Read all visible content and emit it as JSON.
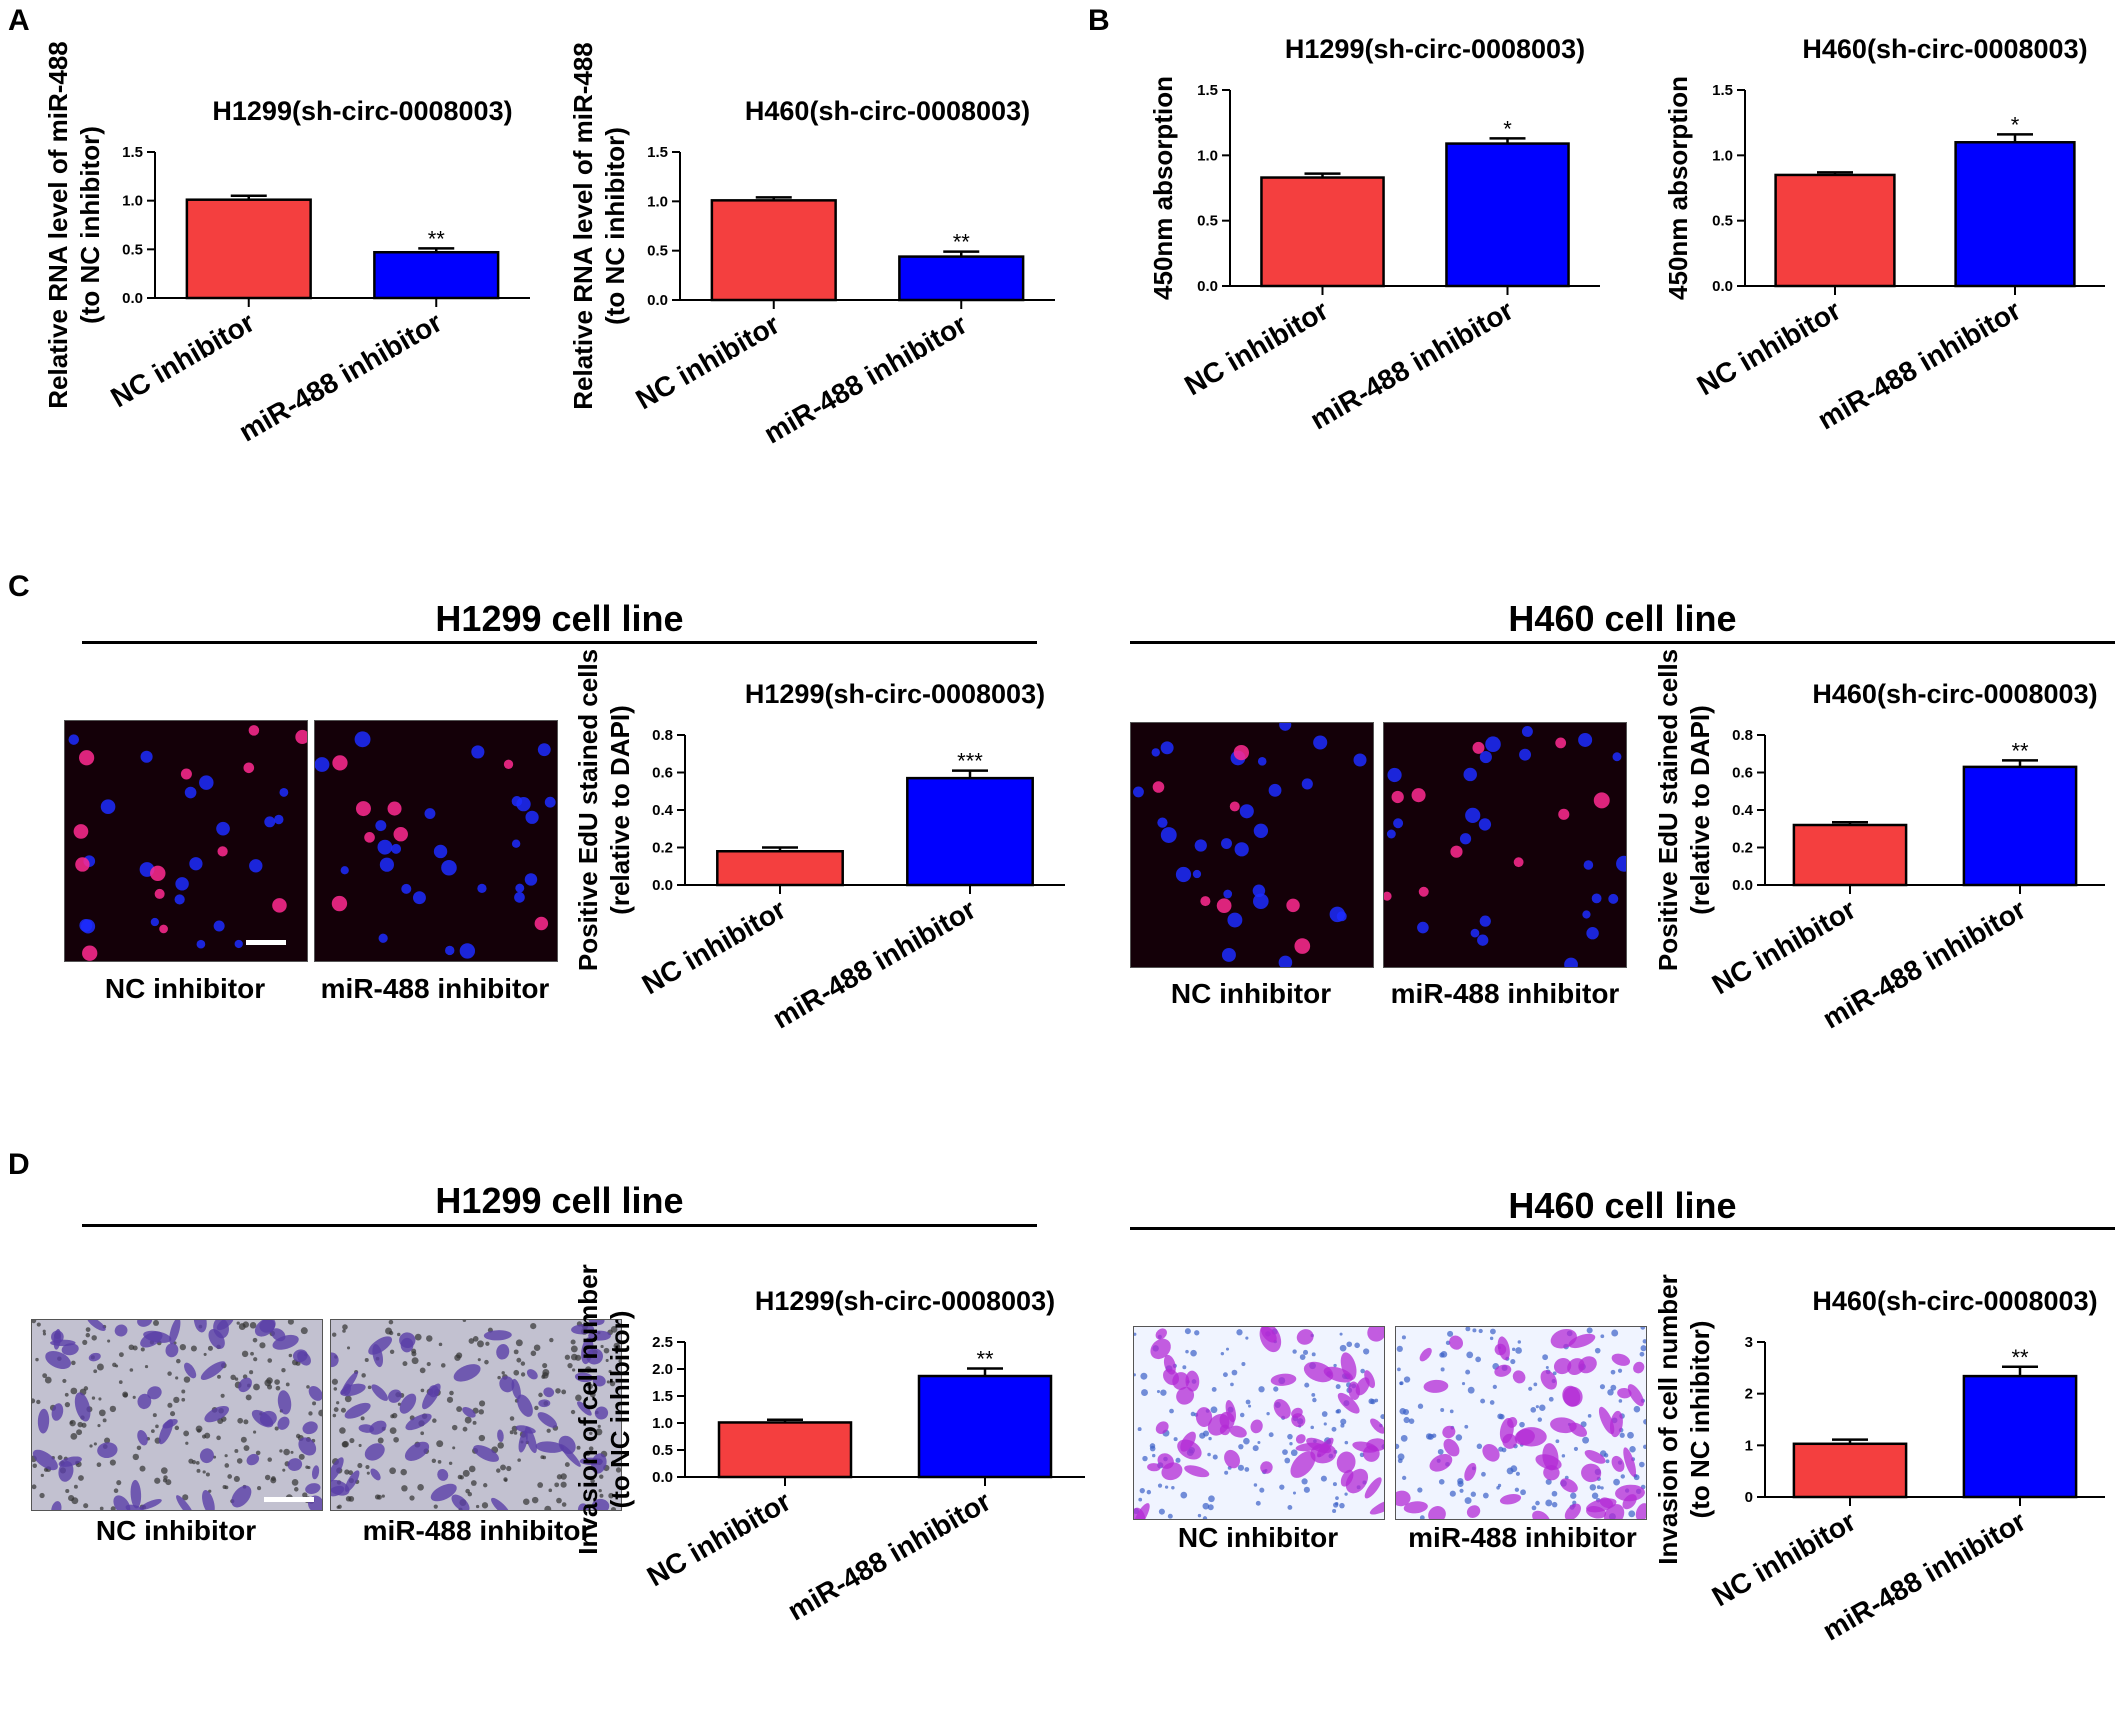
{
  "colors": {
    "nc": "#f43f3f",
    "mir": "#0000ff",
    "edu_bg": "#140008",
    "transwell_bg": "#c2c1d0",
    "transwell_bg2": "#f0f4ff"
  },
  "panels": {
    "A": "A",
    "B": "B",
    "C": "C",
    "D": "D"
  },
  "sections": {
    "c_h1299": {
      "title": "H1299 cell line"
    },
    "c_h460": {
      "title": "H460 cell line"
    },
    "d_h1299": {
      "title": "H1299 cell line"
    },
    "d_h460": {
      "title": "H460 cell line"
    }
  },
  "micrographs": {
    "c_h1299": {
      "left": "NC inhibitor",
      "right": "miR-488 inhibitor"
    },
    "c_h460": {
      "left": "NC inhibitor",
      "right": "miR-488 inhibitor"
    },
    "d_h1299": {
      "left": "NC inhibitor",
      "right": "miR-488 inhibitor"
    },
    "d_h460": {
      "left": "NC inhibitor",
      "right": "miR-488 inhibitor"
    }
  },
  "chart_data": [
    {
      "id": "A1",
      "type": "bar",
      "title": "H1299(sh-circ-0008003)",
      "ylabel": [
        "Relative RNA level of miR-488",
        "(to NC inhibitor)"
      ],
      "categories": [
        "NC inhibitor",
        "miR-488 inhibitor"
      ],
      "values": [
        1.01,
        0.47
      ],
      "errors": [
        0.04,
        0.04
      ],
      "significance": [
        "",
        "**"
      ],
      "ylim": [
        0,
        1.5
      ],
      "yticks": [
        "0.0",
        "0.5",
        "1.0",
        "1.5"
      ]
    },
    {
      "id": "A2",
      "type": "bar",
      "title": "H460(sh-circ-0008003)",
      "ylabel": [
        "Relative RNA level of miR-488",
        "(to NC inhibitor)"
      ],
      "categories": [
        "NC inhibitor",
        "miR-488 inhibitor"
      ],
      "values": [
        1.01,
        0.44
      ],
      "errors": [
        0.03,
        0.05
      ],
      "significance": [
        "",
        "**"
      ],
      "ylim": [
        0,
        1.5
      ],
      "yticks": [
        "0.0",
        "0.5",
        "1.0",
        "1.5"
      ]
    },
    {
      "id": "B1",
      "type": "bar",
      "title": "H1299(sh-circ-0008003)",
      "ylabel": [
        "450nm absorption"
      ],
      "categories": [
        "NC inhibitor",
        "miR-488 inhibitor"
      ],
      "values": [
        0.83,
        1.09
      ],
      "errors": [
        0.03,
        0.04
      ],
      "significance": [
        "",
        "*"
      ],
      "ylim": [
        0,
        1.5
      ],
      "yticks": [
        "0.0",
        "0.5",
        "1.0",
        "1.5"
      ]
    },
    {
      "id": "B2",
      "type": "bar",
      "title": "H460(sh-circ-0008003)",
      "ylabel": [
        "450nm absorption"
      ],
      "categories": [
        "NC inhibitor",
        "miR-488 inhibitor"
      ],
      "values": [
        0.85,
        1.1
      ],
      "errors": [
        0.02,
        0.06
      ],
      "significance": [
        "",
        "*"
      ],
      "ylim": [
        0,
        1.5
      ],
      "yticks": [
        "0.0",
        "0.5",
        "1.0",
        "1.5"
      ]
    },
    {
      "id": "C1",
      "type": "bar",
      "title": "H1299(sh-circ-0008003)",
      "ylabel": [
        "Positive EdU stained cells",
        "(relative to DAPI)"
      ],
      "categories": [
        "NC inhibitor",
        "miR-488 inhibitor"
      ],
      "values": [
        0.18,
        0.57
      ],
      "errors": [
        0.02,
        0.04
      ],
      "significance": [
        "",
        "***"
      ],
      "ylim": [
        0,
        0.8
      ],
      "yticks": [
        "0.0",
        "0.2",
        "0.4",
        "0.6",
        "0.8"
      ]
    },
    {
      "id": "C2",
      "type": "bar",
      "title": "H460(sh-circ-0008003)",
      "ylabel": [
        "Positive EdU stained cells",
        "(relative to DAPI)"
      ],
      "categories": [
        "NC inhibitor",
        "miR-488 inhibitor"
      ],
      "values": [
        0.32,
        0.63
      ],
      "errors": [
        0.015,
        0.035
      ],
      "significance": [
        "",
        "**"
      ],
      "ylim": [
        0,
        0.8
      ],
      "yticks": [
        "0.0",
        "0.2",
        "0.4",
        "0.6",
        "0.8"
      ]
    },
    {
      "id": "D1",
      "type": "bar",
      "title": "H1299(sh-circ-0008003)",
      "ylabel": [
        "Invasion of cell number",
        "(to NC inhibitor)"
      ],
      "categories": [
        "NC inhibitor",
        "miR-488 inhibitor"
      ],
      "values": [
        1.01,
        1.87
      ],
      "errors": [
        0.05,
        0.14
      ],
      "significance": [
        "",
        "**"
      ],
      "ylim": [
        0,
        2.5
      ],
      "yticks": [
        "0.0",
        "0.5",
        "1.0",
        "1.5",
        "2.0",
        "2.5"
      ]
    },
    {
      "id": "D2",
      "type": "bar",
      "title": "H460(sh-circ-0008003)",
      "ylabel": [
        "Invasion of cell number",
        "(to NC inhibitor)"
      ],
      "categories": [
        "NC inhibitor",
        "miR-488 inhibitor"
      ],
      "values": [
        1.03,
        2.34
      ],
      "errors": [
        0.08,
        0.18
      ],
      "significance": [
        "",
        "**"
      ],
      "ylim": [
        0,
        3
      ],
      "yticks": [
        "0",
        "1",
        "2",
        "3"
      ]
    }
  ]
}
